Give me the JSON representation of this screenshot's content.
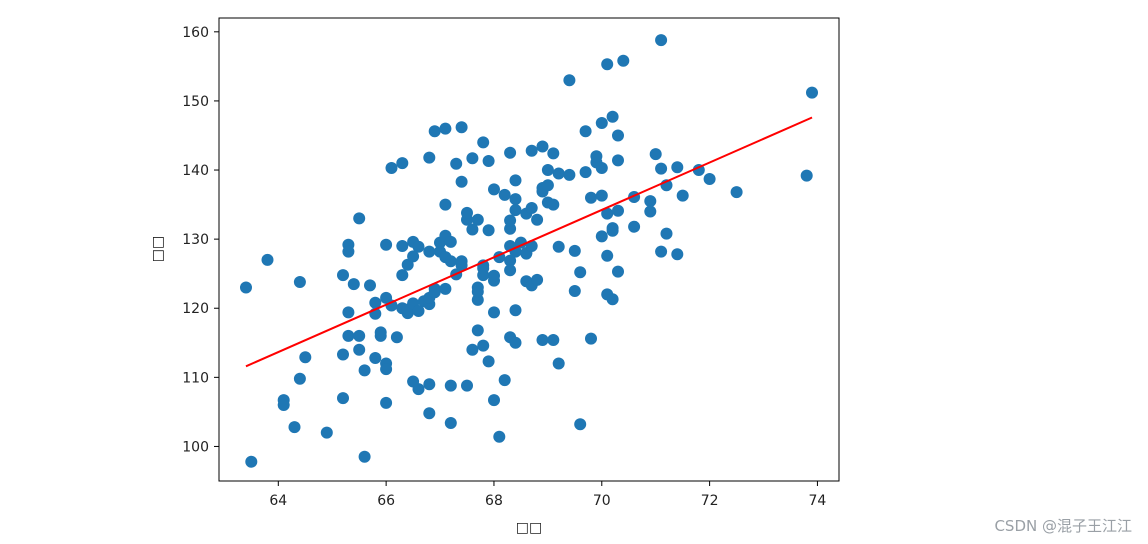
{
  "chart_data": {
    "type": "scatter",
    "xlabel": "□□",
    "ylabel": "□□",
    "xlim": [
      62.9,
      74.4
    ],
    "ylim": [
      95,
      162
    ],
    "xticks": [
      64,
      66,
      68,
      70,
      72,
      74
    ],
    "yticks": [
      100,
      110,
      120,
      130,
      140,
      150,
      160
    ],
    "grid": false,
    "point_color": "#1f77b4",
    "line_color": "#ff0000",
    "fit_line": {
      "x": [
        63.4,
        73.9
      ],
      "y": [
        111.6,
        147.6
      ]
    },
    "points": [
      [
        63.4,
        123.0
      ],
      [
        63.5,
        97.8
      ],
      [
        63.8,
        127.0
      ],
      [
        64.1,
        106.7
      ],
      [
        64.1,
        106.0
      ],
      [
        64.3,
        102.8
      ],
      [
        64.4,
        123.8
      ],
      [
        64.4,
        109.8
      ],
      [
        64.5,
        112.9
      ],
      [
        64.9,
        102.0
      ],
      [
        65.2,
        113.3
      ],
      [
        65.2,
        107.0
      ],
      [
        65.2,
        124.8
      ],
      [
        65.3,
        129.2
      ],
      [
        65.3,
        119.4
      ],
      [
        65.3,
        116.0
      ],
      [
        65.3,
        128.2
      ],
      [
        65.4,
        123.5
      ],
      [
        65.5,
        116.0
      ],
      [
        65.5,
        114.0
      ],
      [
        65.5,
        133.0
      ],
      [
        65.6,
        111.0
      ],
      [
        65.6,
        98.5
      ],
      [
        65.7,
        123.3
      ],
      [
        65.8,
        119.2
      ],
      [
        65.8,
        112.8
      ],
      [
        65.8,
        120.8
      ],
      [
        65.9,
        116.0
      ],
      [
        65.9,
        116.5
      ],
      [
        66.0,
        129.2
      ],
      [
        66.0,
        121.5
      ],
      [
        66.0,
        112.0
      ],
      [
        66.0,
        111.2
      ],
      [
        66.0,
        106.3
      ],
      [
        66.1,
        120.4
      ],
      [
        66.1,
        140.3
      ],
      [
        66.2,
        115.8
      ],
      [
        66.3,
        141.0
      ],
      [
        66.3,
        120.0
      ],
      [
        66.3,
        124.8
      ],
      [
        66.3,
        129.0
      ],
      [
        66.4,
        119.3
      ],
      [
        66.4,
        126.3
      ],
      [
        66.4,
        119.8
      ],
      [
        66.5,
        127.5
      ],
      [
        66.5,
        129.6
      ],
      [
        66.5,
        109.4
      ],
      [
        66.5,
        120.7
      ],
      [
        66.6,
        128.9
      ],
      [
        66.6,
        108.3
      ],
      [
        66.6,
        119.6
      ],
      [
        66.7,
        121.0
      ],
      [
        66.8,
        128.2
      ],
      [
        66.8,
        109.0
      ],
      [
        66.8,
        120.6
      ],
      [
        66.8,
        121.5
      ],
      [
        66.8,
        104.8
      ],
      [
        66.8,
        141.8
      ],
      [
        66.9,
        145.6
      ],
      [
        66.9,
        122.8
      ],
      [
        66.9,
        122.3
      ],
      [
        67.0,
        128.2
      ],
      [
        67.0,
        129.5
      ],
      [
        67.1,
        146.0
      ],
      [
        67.1,
        130.5
      ],
      [
        67.1,
        135.0
      ],
      [
        67.1,
        127.4
      ],
      [
        67.1,
        122.8
      ],
      [
        67.2,
        108.8
      ],
      [
        67.2,
        103.4
      ],
      [
        67.2,
        126.8
      ],
      [
        67.2,
        129.6
      ],
      [
        67.3,
        124.9
      ],
      [
        67.3,
        140.9
      ],
      [
        67.4,
        138.3
      ],
      [
        67.4,
        146.2
      ],
      [
        67.4,
        126.2
      ],
      [
        67.4,
        126.8
      ],
      [
        67.5,
        132.8
      ],
      [
        67.5,
        108.8
      ],
      [
        67.5,
        133.8
      ],
      [
        67.6,
        141.7
      ],
      [
        67.6,
        114.0
      ],
      [
        67.6,
        131.4
      ],
      [
        67.7,
        116.8
      ],
      [
        67.7,
        121.2
      ],
      [
        67.7,
        123.0
      ],
      [
        67.7,
        122.4
      ],
      [
        67.7,
        132.8
      ],
      [
        67.8,
        144.0
      ],
      [
        67.8,
        114.6
      ],
      [
        67.8,
        124.8
      ],
      [
        67.8,
        126.2
      ],
      [
        67.8,
        125.8
      ],
      [
        67.9,
        131.3
      ],
      [
        67.9,
        141.3
      ],
      [
        67.9,
        112.3
      ],
      [
        68.0,
        137.2
      ],
      [
        68.0,
        119.4
      ],
      [
        68.0,
        106.7
      ],
      [
        68.0,
        124.0
      ],
      [
        68.0,
        124.7
      ],
      [
        68.1,
        127.4
      ],
      [
        68.1,
        101.4
      ],
      [
        68.2,
        136.4
      ],
      [
        68.2,
        109.6
      ],
      [
        68.3,
        142.5
      ],
      [
        68.3,
        131.5
      ],
      [
        68.3,
        132.7
      ],
      [
        68.3,
        115.8
      ],
      [
        68.3,
        126.9
      ],
      [
        68.3,
        125.5
      ],
      [
        68.3,
        129.0
      ],
      [
        68.4,
        135.8
      ],
      [
        68.4,
        134.2
      ],
      [
        68.4,
        138.5
      ],
      [
        68.4,
        115.0
      ],
      [
        68.4,
        119.7
      ],
      [
        68.4,
        128.2
      ],
      [
        68.5,
        129.5
      ],
      [
        68.6,
        123.9
      ],
      [
        68.6,
        127.9
      ],
      [
        68.6,
        128.0
      ],
      [
        68.6,
        133.7
      ],
      [
        68.7,
        134.5
      ],
      [
        68.7,
        129.0
      ],
      [
        68.7,
        123.3
      ],
      [
        68.7,
        142.8
      ],
      [
        68.8,
        124.1
      ],
      [
        68.8,
        132.8
      ],
      [
        68.9,
        136.9
      ],
      [
        68.9,
        143.4
      ],
      [
        68.9,
        115.4
      ],
      [
        68.9,
        137.4
      ],
      [
        69.0,
        140.0
      ],
      [
        69.0,
        137.8
      ],
      [
        69.0,
        135.3
      ],
      [
        69.1,
        142.4
      ],
      [
        69.1,
        115.4
      ],
      [
        69.1,
        135.0
      ],
      [
        69.2,
        128.9
      ],
      [
        69.2,
        139.5
      ],
      [
        69.2,
        112.0
      ],
      [
        69.4,
        153.0
      ],
      [
        69.4,
        139.3
      ],
      [
        69.5,
        122.5
      ],
      [
        69.5,
        128.3
      ],
      [
        69.6,
        103.2
      ],
      [
        69.6,
        125.2
      ],
      [
        69.7,
        139.7
      ],
      [
        69.7,
        145.6
      ],
      [
        69.8,
        136.0
      ],
      [
        69.8,
        115.6
      ],
      [
        69.9,
        141.1
      ],
      [
        69.9,
        142.0
      ],
      [
        70.0,
        146.8
      ],
      [
        70.0,
        136.3
      ],
      [
        70.0,
        130.4
      ],
      [
        70.0,
        140.3
      ],
      [
        70.1,
        122.0
      ],
      [
        70.1,
        133.7
      ],
      [
        70.1,
        155.3
      ],
      [
        70.1,
        127.6
      ],
      [
        70.2,
        131.6
      ],
      [
        70.2,
        121.3
      ],
      [
        70.2,
        131.2
      ],
      [
        70.2,
        147.7
      ],
      [
        70.3,
        134.1
      ],
      [
        70.3,
        145.0
      ],
      [
        70.3,
        141.4
      ],
      [
        70.3,
        125.3
      ],
      [
        70.4,
        155.8
      ],
      [
        70.6,
        136.1
      ],
      [
        70.6,
        131.8
      ],
      [
        70.9,
        135.5
      ],
      [
        70.9,
        134.0
      ],
      [
        71.0,
        142.3
      ],
      [
        71.1,
        158.8
      ],
      [
        71.1,
        140.2
      ],
      [
        71.1,
        128.2
      ],
      [
        71.2,
        137.8
      ],
      [
        71.2,
        130.8
      ],
      [
        71.4,
        127.8
      ],
      [
        71.4,
        140.4
      ],
      [
        71.5,
        136.3
      ],
      [
        71.8,
        140.0
      ],
      [
        72.0,
        138.7
      ],
      [
        72.5,
        136.8
      ],
      [
        73.8,
        139.2
      ],
      [
        73.9,
        151.2
      ]
    ]
  },
  "watermark": "CSDN @混子王江江"
}
